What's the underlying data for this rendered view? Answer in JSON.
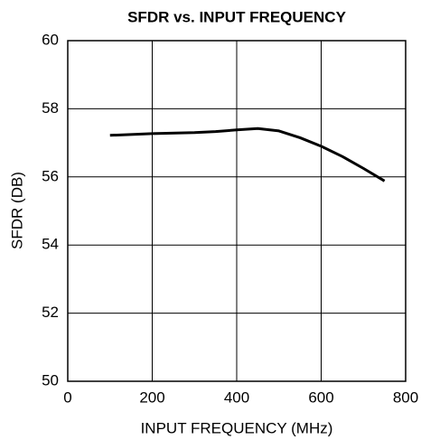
{
  "chart_data": {
    "type": "line",
    "title": "SFDR vs. INPUT FREQUENCY",
    "xlabel": "INPUT FREQUENCY (MHz)",
    "ylabel": "SFDR (DB)",
    "x": [
      100,
      200,
      300,
      350,
      400,
      450,
      500,
      550,
      600,
      650,
      700,
      750
    ],
    "series": [
      {
        "name": "SFDR",
        "color": "#000000",
        "values": [
          57.22,
          57.27,
          57.3,
          57.33,
          57.38,
          57.42,
          57.35,
          57.15,
          56.9,
          56.6,
          56.25,
          55.88
        ]
      }
    ],
    "xlim": [
      0,
      800
    ],
    "xticks": [
      0,
      200,
      400,
      600,
      800
    ],
    "ylim": [
      50,
      60
    ],
    "yticks": [
      50,
      52,
      54,
      56,
      58,
      60
    ],
    "grid": true
  }
}
